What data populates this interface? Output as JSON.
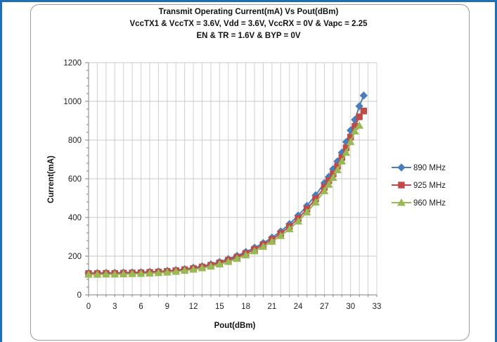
{
  "chart_data": {
    "type": "line",
    "title": "Transmit Operating Current(mA) Vs Pout(dBm)",
    "subtitle_lines": [
      "VccTX1 & VccTX = 3.6V, Vdd = 3.6V, VccRX  = 0V & Vapc = 2.25",
      "EN & TR = 1.6V & BYP = 0V"
    ],
    "xlabel": "Pout(dBm)",
    "ylabel": "Current(mA)",
    "xlim": [
      0,
      33
    ],
    "ylim": [
      0,
      1200
    ],
    "xticks": [
      0,
      3,
      6,
      9,
      12,
      15,
      18,
      21,
      24,
      27,
      30,
      33
    ],
    "yticks": [
      0,
      200,
      400,
      600,
      800,
      1000,
      1200
    ],
    "grid": true,
    "legend_position": "right",
    "series": [
      {
        "name": "890 MHz",
        "color": "#4a7ebb",
        "marker": "diamond",
        "points": [
          [
            0,
            113
          ],
          [
            1,
            113
          ],
          [
            2,
            114
          ],
          [
            3,
            114
          ],
          [
            4,
            115
          ],
          [
            5,
            116
          ],
          [
            6,
            117
          ],
          [
            7,
            119
          ],
          [
            8,
            121
          ],
          [
            9,
            124
          ],
          [
            10,
            128
          ],
          [
            11,
            133
          ],
          [
            12,
            140
          ],
          [
            13,
            148
          ],
          [
            14,
            158
          ],
          [
            15,
            170
          ],
          [
            16,
            185
          ],
          [
            17,
            202
          ],
          [
            18,
            222
          ],
          [
            19,
            244
          ],
          [
            20,
            268
          ],
          [
            21,
            296
          ],
          [
            22,
            328
          ],
          [
            23,
            366
          ],
          [
            24,
            410
          ],
          [
            25,
            460
          ],
          [
            26,
            515
          ],
          [
            27,
            578
          ],
          [
            27.5,
            610
          ],
          [
            28,
            650
          ],
          [
            28.5,
            690
          ],
          [
            29,
            735
          ],
          [
            29.5,
            790
          ],
          [
            30,
            850
          ],
          [
            30.5,
            905
          ],
          [
            31,
            975
          ],
          [
            31.5,
            1030
          ]
        ]
      },
      {
        "name": "925 MHz",
        "color": "#be4b48",
        "marker": "square",
        "points": [
          [
            0,
            110
          ],
          [
            1,
            110
          ],
          [
            2,
            111
          ],
          [
            3,
            111
          ],
          [
            4,
            112
          ],
          [
            5,
            113
          ],
          [
            6,
            114
          ],
          [
            7,
            116
          ],
          [
            8,
            118
          ],
          [
            9,
            121
          ],
          [
            10,
            125
          ],
          [
            11,
            130
          ],
          [
            12,
            136
          ],
          [
            13,
            144
          ],
          [
            14,
            153
          ],
          [
            15,
            165
          ],
          [
            16,
            179
          ],
          [
            17,
            195
          ],
          [
            18,
            214
          ],
          [
            19,
            235
          ],
          [
            20,
            259
          ],
          [
            21,
            286
          ],
          [
            22,
            317
          ],
          [
            23,
            353
          ],
          [
            24,
            395
          ],
          [
            25,
            443
          ],
          [
            26,
            496
          ],
          [
            27,
            556
          ],
          [
            27.5,
            590
          ],
          [
            28,
            625
          ],
          [
            28.5,
            665
          ],
          [
            29,
            710
          ],
          [
            29.5,
            760
          ],
          [
            30,
            815
          ],
          [
            30.5,
            870
          ],
          [
            31,
            920
          ],
          [
            31.5,
            950
          ]
        ]
      },
      {
        "name": "960 MHz",
        "color": "#98b954",
        "marker": "triangle",
        "points": [
          [
            0,
            105
          ],
          [
            1,
            105
          ],
          [
            2,
            106
          ],
          [
            3,
            106
          ],
          [
            4,
            107
          ],
          [
            5,
            108
          ],
          [
            6,
            109
          ],
          [
            7,
            111
          ],
          [
            8,
            113
          ],
          [
            9,
            116
          ],
          [
            10,
            120
          ],
          [
            11,
            125
          ],
          [
            12,
            131
          ],
          [
            13,
            138
          ],
          [
            14,
            147
          ],
          [
            15,
            158
          ],
          [
            16,
            171
          ],
          [
            17,
            187
          ],
          [
            18,
            205
          ],
          [
            19,
            226
          ],
          [
            20,
            249
          ],
          [
            21,
            275
          ],
          [
            22,
            305
          ],
          [
            23,
            340
          ],
          [
            24,
            380
          ],
          [
            25,
            427
          ],
          [
            26,
            478
          ],
          [
            27,
            537
          ],
          [
            27.5,
            570
          ],
          [
            28,
            605
          ],
          [
            28.5,
            645
          ],
          [
            29,
            690
          ],
          [
            29.5,
            735
          ],
          [
            30,
            790
          ],
          [
            30.5,
            845
          ],
          [
            31,
            875
          ]
        ]
      }
    ]
  }
}
